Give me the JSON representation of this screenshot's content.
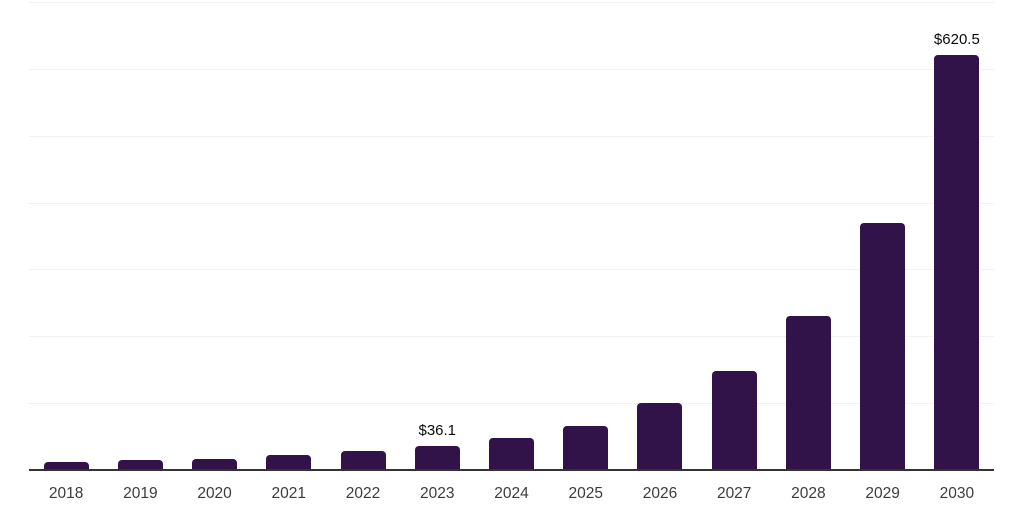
{
  "chart_data": {
    "type": "bar",
    "title": "",
    "xlabel": "",
    "ylabel": "",
    "categories": [
      "2018",
      "2019",
      "2020",
      "2021",
      "2022",
      "2023",
      "2024",
      "2025",
      "2026",
      "2027",
      "2028",
      "2029",
      "2030"
    ],
    "values": [
      11.9,
      14.9,
      16.9,
      22.8,
      27.8,
      36.1,
      48.2,
      66.2,
      100.9,
      148.5,
      230.6,
      369.4,
      620.5
    ],
    "value_labels": [
      "",
      "",
      "",
      "",
      "",
      "$36.1",
      "",
      "",
      "",
      "",
      "",
      "",
      "$620.5"
    ],
    "ylim": [
      0,
      700
    ],
    "gridline_step": 100,
    "grid": "horizontal-only",
    "legend": "none",
    "y_axis_tick_labels": "none",
    "colors": {
      "bar": "#321349",
      "gridline": "#f2f1f3",
      "axis_line": "#333333",
      "value_label_text": "#0b0b0b",
      "tick_label_text": "#3c3c3c",
      "background": "#ffffff"
    }
  }
}
